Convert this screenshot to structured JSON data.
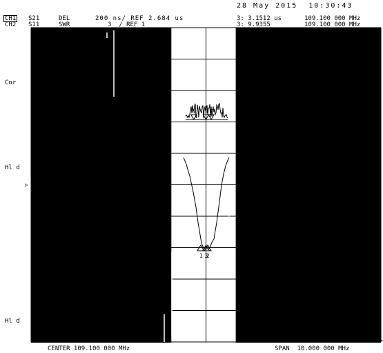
{
  "header": {
    "datetime": "28 May 2015  10:30:43",
    "ch1": {
      "label": "CH1",
      "param": "S21",
      "format": "DEL",
      "scale": "200 ns/ REF 2.684 us",
      "marker": "3: 3.1512 us",
      "freq": "109.100 000 MHz"
    },
    "ch2": {
      "label": "CH2",
      "param": "S11",
      "format": "SWR",
      "scale": "3  / REF 1",
      "marker": "3: 9.9355",
      "freq": "109.100 000 MHz"
    }
  },
  "side_labels": {
    "cor": "Cor",
    "hld_1": "Hl d",
    "hld_2": "Hl d"
  },
  "footer": {
    "center": "CENTER 109.100 000 MHz",
    "span": "SPAN  10.000 000 MHz"
  },
  "colors": {
    "trace": "#000000",
    "background": "#ffffff",
    "blank_region": "#000000"
  },
  "chart_data": {
    "type": "line",
    "x_range_mhz": [
      104.1,
      114.1
    ],
    "grid": true,
    "grid_divisions": {
      "x": 10,
      "y": 10
    },
    "blank_regions_mhz": [
      [
        104.1,
        108.1
      ],
      [
        109.95,
        114.1
      ]
    ],
    "series": [
      {
        "channel": "CH1",
        "markers": [
          {
            "id": "1",
            "x": 108.75
          },
          {
            "id": "2",
            "x": 109.25
          },
          {
            "id": "3",
            "x": 109.1,
            "value": "3.1512 us"
          }
        ]
      },
      {
        "channel": "CH2",
        "markers": [
          {
            "id": "1",
            "x": 108.95
          },
          {
            "id": "2",
            "x": 109.15
          },
          {
            "id": "3",
            "x": 109.1,
            "value": "9.9355"
          }
        ]
      }
    ]
  }
}
